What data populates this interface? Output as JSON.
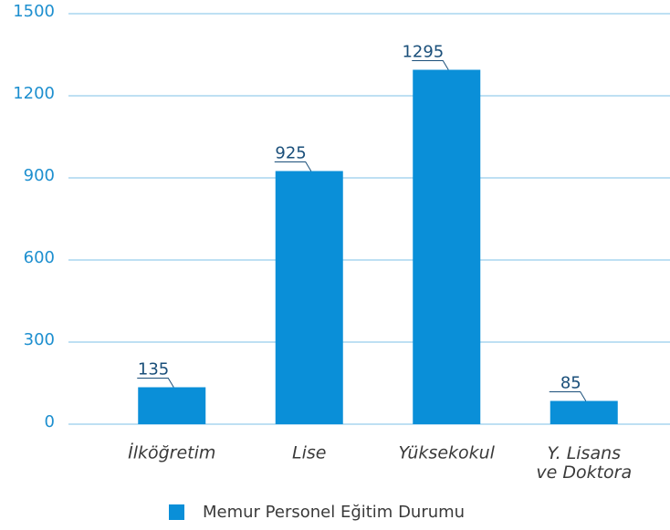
{
  "chart_data": {
    "type": "bar",
    "categories": [
      "İlköğretim",
      "Lise",
      "Yüksekokul",
      "Y. Lisans\nve Doktora"
    ],
    "series": [
      {
        "name": "Memur Personel Eğitim Durumu",
        "color": "#0a8fd8",
        "values": [
          135,
          925,
          1295,
          85
        ]
      }
    ],
    "ylim": [
      0,
      1500
    ],
    "yticks": [
      0,
      300,
      600,
      900,
      1200,
      1500
    ],
    "grid": true,
    "legend": "bottom"
  }
}
